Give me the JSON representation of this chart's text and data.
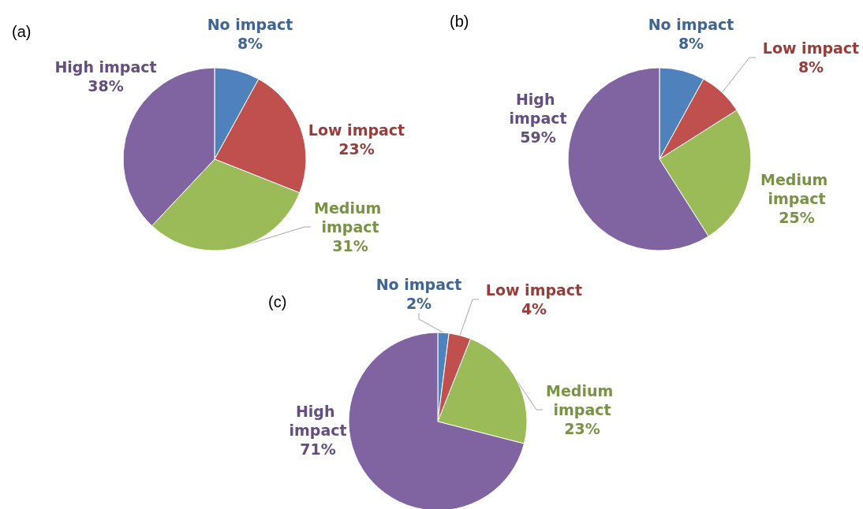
{
  "chart_data": [
    {
      "type": "pie",
      "title": "(a)",
      "categories": [
        "No impact",
        "Low impact",
        "Medium impact",
        "High impact"
      ],
      "values": [
        8,
        23,
        31,
        38
      ],
      "value_labels": [
        "8%",
        "23%",
        "31%",
        "38%"
      ],
      "colors": [
        "#4f81bd",
        "#c0504d",
        "#9bbb59",
        "#8064a2"
      ]
    },
    {
      "type": "pie",
      "title": "(b)",
      "categories": [
        "No impact",
        "Low impact",
        "Medium impact",
        "High impact"
      ],
      "values": [
        8,
        8,
        25,
        59
      ],
      "value_labels": [
        "8%",
        "8%",
        "25%",
        "59%"
      ],
      "colors": [
        "#4f81bd",
        "#c0504d",
        "#9bbb59",
        "#8064a2"
      ]
    },
    {
      "type": "pie",
      "title": "(c)",
      "categories": [
        "No impact",
        "Low impact",
        "Medium impact",
        "High impact"
      ],
      "values": [
        2,
        4,
        23,
        71
      ],
      "value_labels": [
        "2%",
        "4%",
        "23%",
        "71%"
      ],
      "colors": [
        "#4f81bd",
        "#c0504d",
        "#9bbb59",
        "#8064a2"
      ]
    }
  ]
}
